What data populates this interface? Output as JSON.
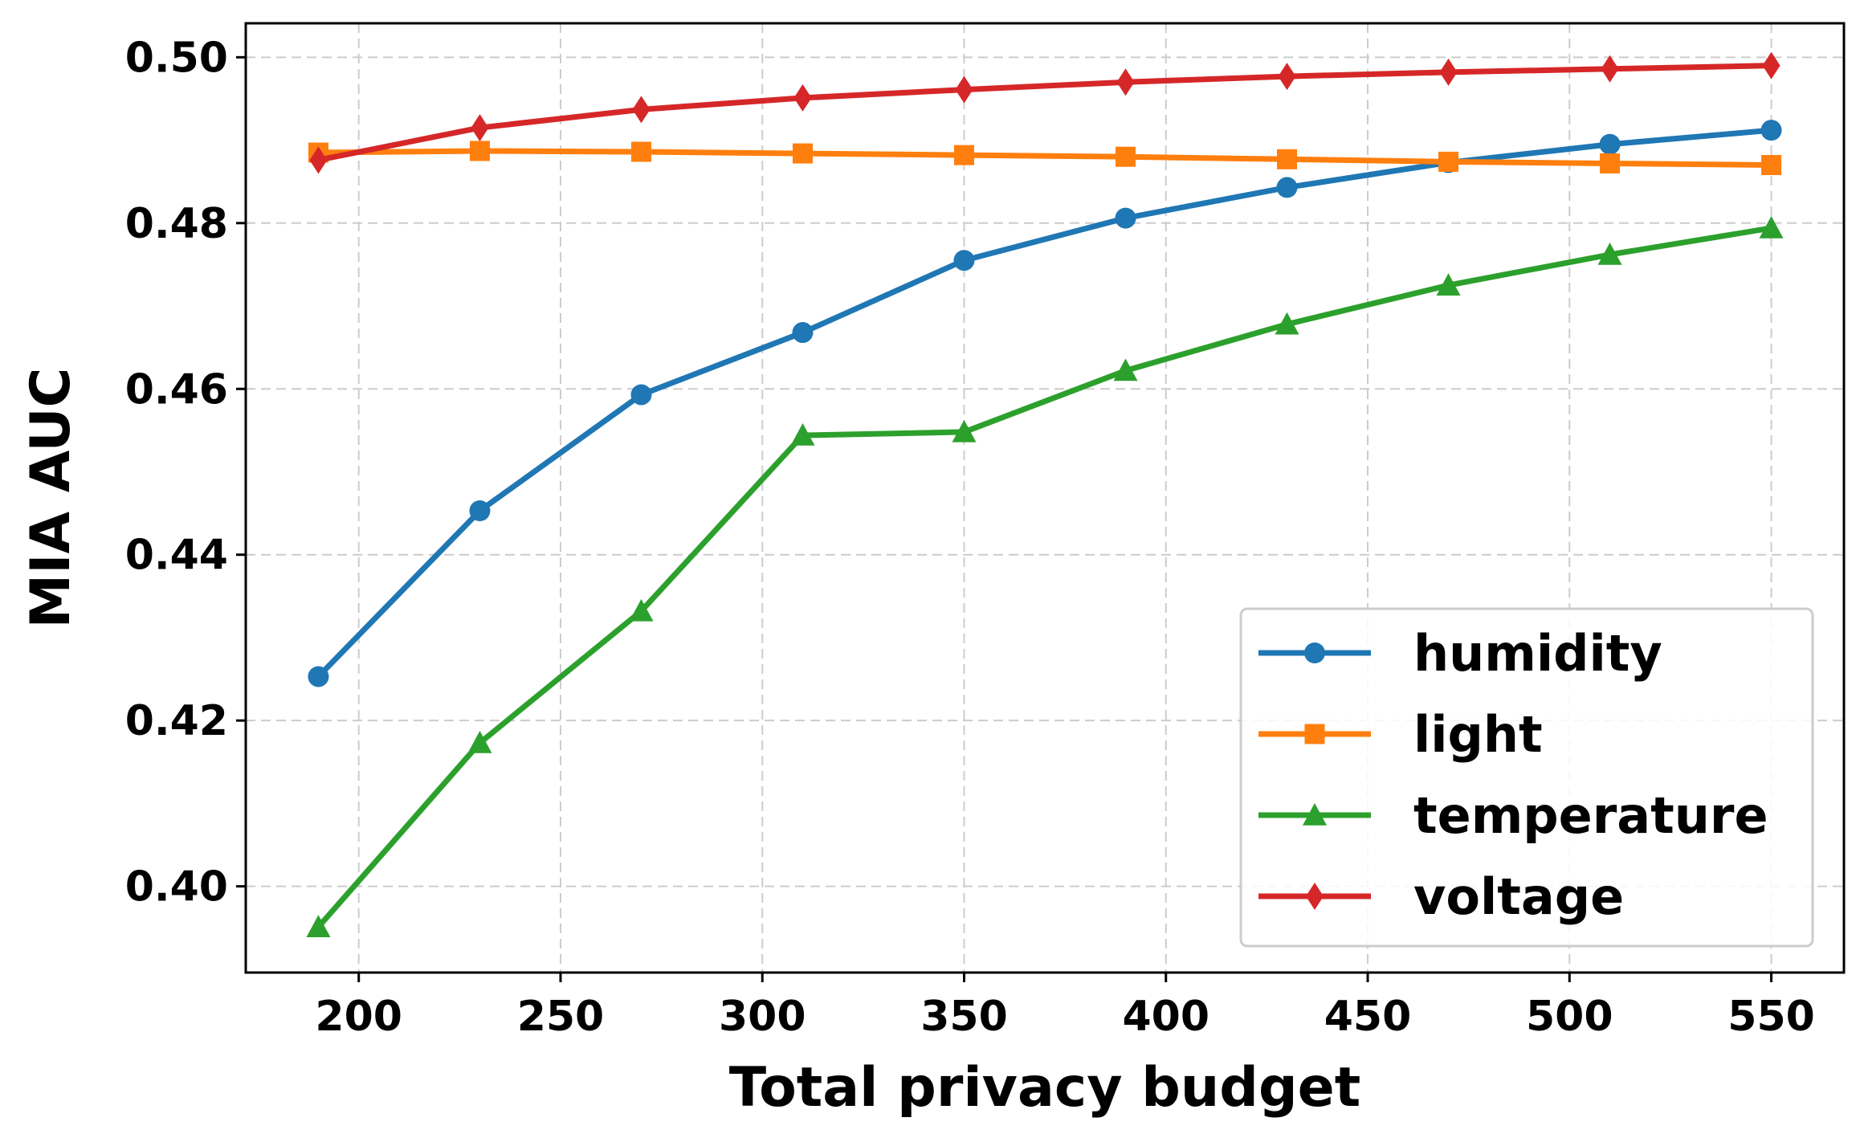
{
  "chart_data": {
    "type": "line",
    "title": "",
    "xlabel": "Total privacy budget",
    "ylabel": "MIA AUC",
    "x": [
      190,
      230,
      270,
      310,
      350,
      390,
      430,
      470,
      510,
      550
    ],
    "xlim": [
      172,
      568
    ],
    "ylim": [
      0.3896,
      0.5041
    ],
    "xticks": [
      200,
      250,
      300,
      350,
      400,
      450,
      500,
      550
    ],
    "yticks": [
      0.4,
      0.42,
      0.44,
      0.46,
      0.48,
      0.5
    ],
    "ytick_labels": [
      "0.40",
      "0.42",
      "0.44",
      "0.46",
      "0.48",
      "0.50"
    ],
    "grid": true,
    "legend_position": "lower-right",
    "series": [
      {
        "name": "humidity",
        "marker": "circle",
        "color": "#1f77b4",
        "values": [
          0.4253,
          0.4453,
          0.4593,
          0.4668,
          0.4755,
          0.4806,
          0.4843,
          0.4873,
          0.4895,
          0.4912
        ]
      },
      {
        "name": "light",
        "marker": "square",
        "color": "#ff7f0e",
        "values": [
          0.4885,
          0.4887,
          0.4886,
          0.4884,
          0.4882,
          0.488,
          0.4877,
          0.4874,
          0.4872,
          0.487
        ]
      },
      {
        "name": "temperature",
        "marker": "triangle",
        "color": "#2ca02c",
        "values": [
          0.3951,
          0.4173,
          0.4332,
          0.4544,
          0.4548,
          0.4622,
          0.4678,
          0.4725,
          0.4762,
          0.4794
        ]
      },
      {
        "name": "voltage",
        "marker": "diamond",
        "color": "#d62728",
        "values": [
          0.4876,
          0.4915,
          0.4937,
          0.4951,
          0.4961,
          0.497,
          0.4977,
          0.4982,
          0.4986,
          0.499
        ]
      }
    ]
  }
}
